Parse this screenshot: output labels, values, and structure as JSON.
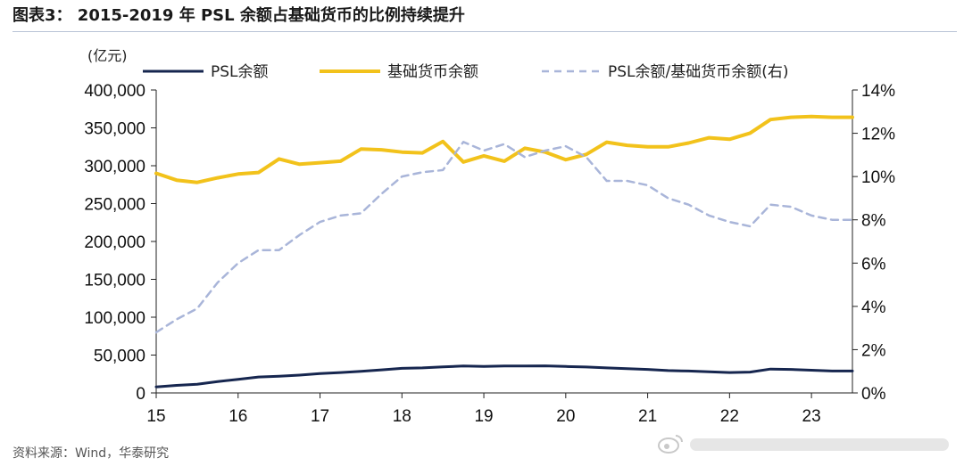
{
  "title": "图表3： 2015-2019 年 PSL 余额占基础货币的比例持续提升",
  "source": "资料来源：Wind，华泰研究",
  "chart_data": {
    "type": "line",
    "left_axis_unit": "(亿元)",
    "x_ticks": [
      "15",
      "16",
      "17",
      "18",
      "19",
      "20",
      "21",
      "22",
      "23"
    ],
    "x_range": [
      2015.0,
      2023.5
    ],
    "y_left_range": [
      0,
      400000
    ],
    "y_left_ticks": [
      "0",
      "50,000",
      "100,000",
      "150,000",
      "200,000",
      "250,000",
      "300,000",
      "350,000",
      "400,000"
    ],
    "y_right_range": [
      0,
      14
    ],
    "y_right_ticks": [
      "0%",
      "2%",
      "4%",
      "6%",
      "8%",
      "10%",
      "12%",
      "14%"
    ],
    "colors": {
      "psl": "#16264f",
      "base": "#f2c21b",
      "ratio": "#a9b5d9",
      "axis": "#222222"
    },
    "series": [
      {
        "name": "PSL余额",
        "axis": "left",
        "style": "solid",
        "x": [
          2015.0,
          2015.25,
          2015.5,
          2015.75,
          2016.0,
          2016.25,
          2016.5,
          2016.75,
          2017.0,
          2017.25,
          2017.5,
          2017.75,
          2018.0,
          2018.25,
          2018.5,
          2018.75,
          2019.0,
          2019.25,
          2019.5,
          2019.75,
          2020.0,
          2020.25,
          2020.5,
          2020.75,
          2021.0,
          2021.25,
          2021.5,
          2021.75,
          2022.0,
          2022.25,
          2022.5,
          2022.75,
          2023.0,
          2023.25,
          2023.5
        ],
        "values": [
          8000,
          10000,
          11500,
          15000,
          18000,
          21000,
          22000,
          23500,
          25500,
          27000,
          28500,
          30500,
          32500,
          33000,
          34500,
          35500,
          35000,
          35500,
          35500,
          35800,
          35000,
          34200,
          33000,
          32000,
          31000,
          29500,
          29000,
          28000,
          27000,
          27500,
          31500,
          31000,
          30000,
          29000,
          29000
        ]
      },
      {
        "name": "基础货币余额",
        "axis": "left",
        "style": "solid",
        "x": [
          2015.0,
          2015.25,
          2015.5,
          2015.75,
          2016.0,
          2016.25,
          2016.5,
          2016.75,
          2017.0,
          2017.25,
          2017.5,
          2017.75,
          2018.0,
          2018.25,
          2018.5,
          2018.75,
          2019.0,
          2019.25,
          2019.5,
          2019.75,
          2020.0,
          2020.25,
          2020.5,
          2020.75,
          2021.0,
          2021.25,
          2021.5,
          2021.75,
          2022.0,
          2022.25,
          2022.5,
          2022.75,
          2023.0,
          2023.25,
          2023.5
        ],
        "values": [
          290000,
          281000,
          278000,
          284000,
          289000,
          291000,
          309000,
          302000,
          304000,
          306000,
          322000,
          321000,
          318000,
          317000,
          332000,
          305000,
          313000,
          306000,
          323000,
          318000,
          308000,
          315000,
          331000,
          327000,
          325000,
          325000,
          330000,
          337000,
          335000,
          343000,
          361000,
          364000,
          365000,
          364000,
          364000
        ]
      },
      {
        "name": "PSL余额/基础货币余额(右)",
        "axis": "right",
        "style": "dashed",
        "x": [
          2015.0,
          2015.25,
          2015.5,
          2015.75,
          2016.0,
          2016.25,
          2016.5,
          2016.75,
          2017.0,
          2017.25,
          2017.5,
          2017.75,
          2018.0,
          2018.25,
          2018.5,
          2018.75,
          2019.0,
          2019.25,
          2019.5,
          2019.75,
          2020.0,
          2020.25,
          2020.5,
          2020.75,
          2021.0,
          2021.25,
          2021.5,
          2021.75,
          2022.0,
          2022.25,
          2022.5,
          2022.75,
          2023.0,
          2023.25,
          2023.5
        ],
        "values": [
          2.8,
          3.4,
          3.9,
          5.1,
          6.0,
          6.6,
          6.6,
          7.3,
          7.9,
          8.2,
          8.3,
          9.2,
          10.0,
          10.2,
          10.3,
          11.6,
          11.2,
          11.5,
          10.9,
          11.2,
          11.4,
          10.9,
          9.8,
          9.8,
          9.6,
          9.0,
          8.7,
          8.2,
          7.9,
          7.7,
          8.7,
          8.6,
          8.2,
          8.0,
          8.0
        ]
      }
    ],
    "legend_position": "top",
    "grid": false
  }
}
